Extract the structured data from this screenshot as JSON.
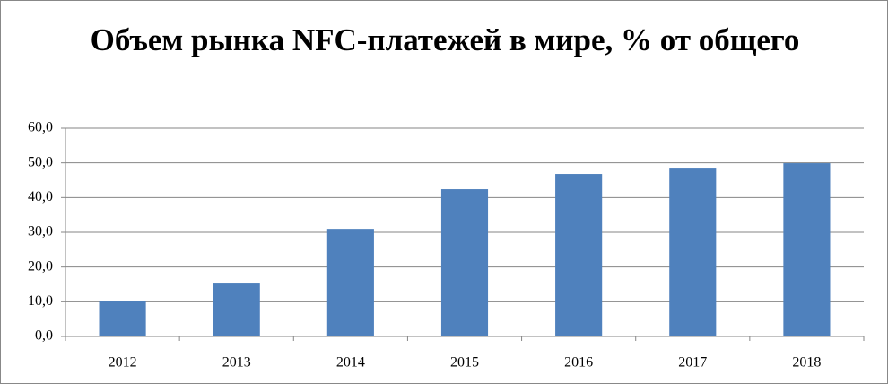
{
  "chart_data": {
    "type": "bar",
    "title": "Объем рынка NFC-платежей в мире, % от общего",
    "categories": [
      "2012",
      "2013",
      "2014",
      "2015",
      "2016",
      "2017",
      "2018"
    ],
    "values": [
      10.1,
      15.5,
      31.0,
      42.4,
      46.8,
      48.6,
      49.9
    ],
    "color": "#4f81bd",
    "ylim": [
      0,
      60
    ],
    "yticks": [
      {
        "value": 0,
        "label": "0,0"
      },
      {
        "value": 10,
        "label": "10,0"
      },
      {
        "value": 20,
        "label": "20,0"
      },
      {
        "value": 30,
        "label": "30,0"
      },
      {
        "value": 40,
        "label": "40,0"
      },
      {
        "value": 50,
        "label": "50,0"
      },
      {
        "value": 60,
        "label": "60,0"
      }
    ],
    "grid": true
  }
}
